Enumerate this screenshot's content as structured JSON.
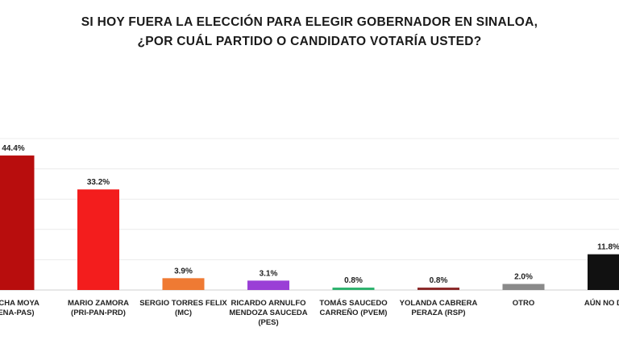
{
  "chart_data": {
    "type": "bar",
    "title": [
      "SI HOY FUERA LA ELECCIÓN PARA ELEGIR GOBERNADOR EN SINALOA,",
      "¿POR CUÁL PARTIDO O CANDIDATO VOTARÍA USTED?"
    ],
    "categories": [
      [
        "ROCHA MOYA",
        "RENA-PAS)"
      ],
      [
        "MARIO ZAMORA",
        "(PRI-PAN-PRD)"
      ],
      [
        "SERGIO TORRES FELIX",
        "(MC)"
      ],
      [
        "RICARDO ARNULFO",
        "MENDOZA SAUCEDA",
        "(PES)"
      ],
      [
        "TOMÁS SAUCEDO",
        "CARREÑO (PVEM)"
      ],
      [
        "YOLANDA CABRERA",
        "PERAZA (RSP)"
      ],
      [
        "OTRO"
      ],
      [
        "AÚN NO DEC"
      ]
    ],
    "values": [
      44.4,
      33.2,
      3.9,
      3.1,
      0.8,
      0.8,
      2.0,
      11.8
    ],
    "value_labels": [
      "44.4%",
      "33.2%",
      "3.9%",
      "3.1%",
      "0.8%",
      "0.8%",
      "2.0%",
      "11.8%"
    ],
    "colors": [
      "#b80d0d",
      "#f31d1d",
      "#ef7a33",
      "#9a3fd6",
      "#2fb36f",
      "#8c2b2b",
      "#8a8a8a",
      "#111111"
    ],
    "ylim": [
      0,
      50
    ],
    "grid": true,
    "legend": "none"
  }
}
